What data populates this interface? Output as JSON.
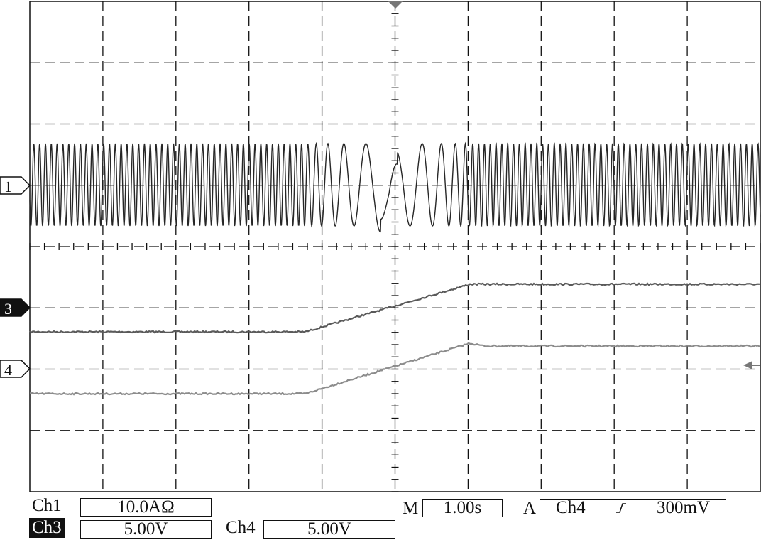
{
  "colors": {
    "background": "#ffffff",
    "graticule": "#111111",
    "ch1_trace": "#262626",
    "ch3_trace": "#5a5a5a",
    "ch4_trace": "#8c8c8c"
  },
  "markers": {
    "ch1": "1",
    "ch3": "3",
    "ch4": "4"
  },
  "readouts": {
    "ch1_label": "Ch1",
    "ch1_scale": "10.0AΩ",
    "ch3_label": "Ch3",
    "ch3_scale": "5.00V",
    "ch4_label": "Ch4",
    "ch4_scale": "5.00V",
    "time_label": "M",
    "time_scale": "1.00s",
    "trigger_label": "A",
    "trigger_source": "Ch4",
    "trigger_slope_icon": "rising-edge-icon",
    "trigger_level": "300mV"
  }
}
